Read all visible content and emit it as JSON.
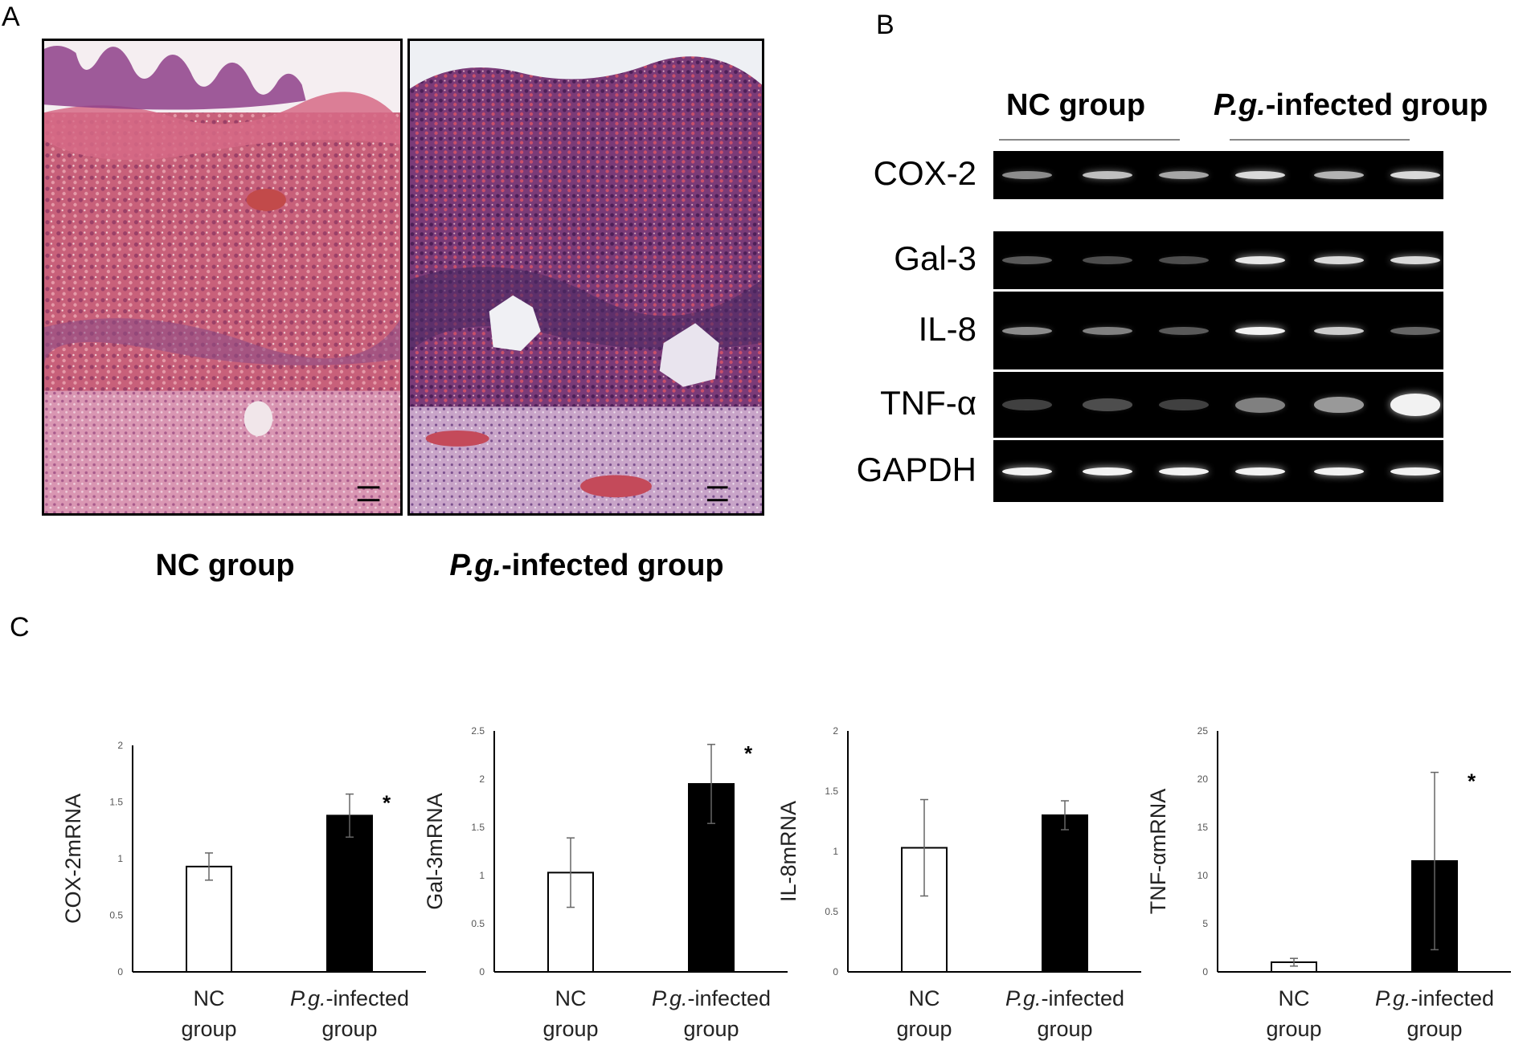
{
  "panels": {
    "a": "A",
    "b": "B",
    "c": "C"
  },
  "histology": {
    "left_label": "NC group",
    "right_label_italic": "P.g.",
    "right_label_rest": "-infected group"
  },
  "gel": {
    "header_left": "NC group",
    "header_right_italic": "P.g.",
    "header_right_rest": "-infected group",
    "rows": [
      {
        "label": "COX-2",
        "intensity": [
          0.55,
          0.75,
          0.65,
          0.85,
          0.7,
          0.85
        ]
      },
      {
        "label": "Gal-3",
        "intensity": [
          0.35,
          0.3,
          0.3,
          0.9,
          0.85,
          0.85
        ]
      },
      {
        "label": "IL-8",
        "intensity": [
          0.55,
          0.5,
          0.35,
          0.95,
          0.8,
          0.4
        ]
      },
      {
        "label": "TNF-α",
        "intensity": [
          0.25,
          0.3,
          0.25,
          0.5,
          0.6,
          0.95
        ]
      },
      {
        "label": "GAPDH",
        "intensity": [
          0.95,
          0.95,
          0.95,
          0.95,
          0.95,
          0.95
        ]
      }
    ],
    "colors": {
      "background": "#000000",
      "band": "#ffffff"
    }
  },
  "chart_data": [
    {
      "type": "bar",
      "ylabel": "COX-2mRNA",
      "categories": [
        [
          "NC",
          "group"
        ],
        [
          "P.g.-infected",
          "group"
        ]
      ],
      "values": [
        0.93,
        1.38
      ],
      "errors": [
        0.12,
        0.19
      ],
      "significance": [
        "",
        "*"
      ],
      "ylim": [
        0,
        2
      ],
      "yticks": [
        "0",
        "0.5",
        "1",
        "1.5",
        "2"
      ],
      "ytick_values": [
        0,
        0.5,
        1,
        1.5,
        2
      ],
      "bar_colors": [
        "#ffffff",
        "#000000"
      ]
    },
    {
      "type": "bar",
      "ylabel": "Gal-3mRNA",
      "categories": [
        [
          "NC",
          "group"
        ],
        [
          "P.g.-infected",
          "group"
        ]
      ],
      "values": [
        1.03,
        1.95
      ],
      "errors": [
        0.36,
        0.41
      ],
      "significance": [
        "",
        "*"
      ],
      "ylim": [
        0,
        2.5
      ],
      "yticks": [
        "0",
        "0.5",
        "1",
        "1.5",
        "2",
        "2.5"
      ],
      "ytick_values": [
        0,
        0.5,
        1,
        1.5,
        2,
        2.5
      ],
      "bar_colors": [
        "#ffffff",
        "#000000"
      ]
    },
    {
      "type": "bar",
      "ylabel": "IL-8mRNA",
      "categories": [
        [
          "NC",
          "group"
        ],
        [
          "P.g.-infected",
          "group"
        ]
      ],
      "values": [
        1.03,
        1.3
      ],
      "errors": [
        0.4,
        0.12
      ],
      "significance": [
        "",
        ""
      ],
      "ylim": [
        0,
        2
      ],
      "yticks": [
        "0",
        "0.5",
        "1",
        "1.5",
        "2"
      ],
      "ytick_values": [
        0,
        0.5,
        1,
        1.5,
        2
      ],
      "bar_colors": [
        "#ffffff",
        "#000000"
      ]
    },
    {
      "type": "bar",
      "ylabel": "TNF-αmRNA",
      "categories": [
        [
          "NC",
          "group"
        ],
        [
          "P.g.-infected",
          "group"
        ]
      ],
      "values": [
        1.0,
        11.5
      ],
      "errors": [
        0.4,
        9.2
      ],
      "significance": [
        "",
        "*"
      ],
      "ylim": [
        0,
        25
      ],
      "yticks": [
        "0",
        "5",
        "10",
        "15",
        "20",
        "25"
      ],
      "ytick_values": [
        0,
        5,
        10,
        15,
        20,
        25
      ],
      "bar_colors": [
        "#ffffff",
        "#000000"
      ]
    }
  ]
}
